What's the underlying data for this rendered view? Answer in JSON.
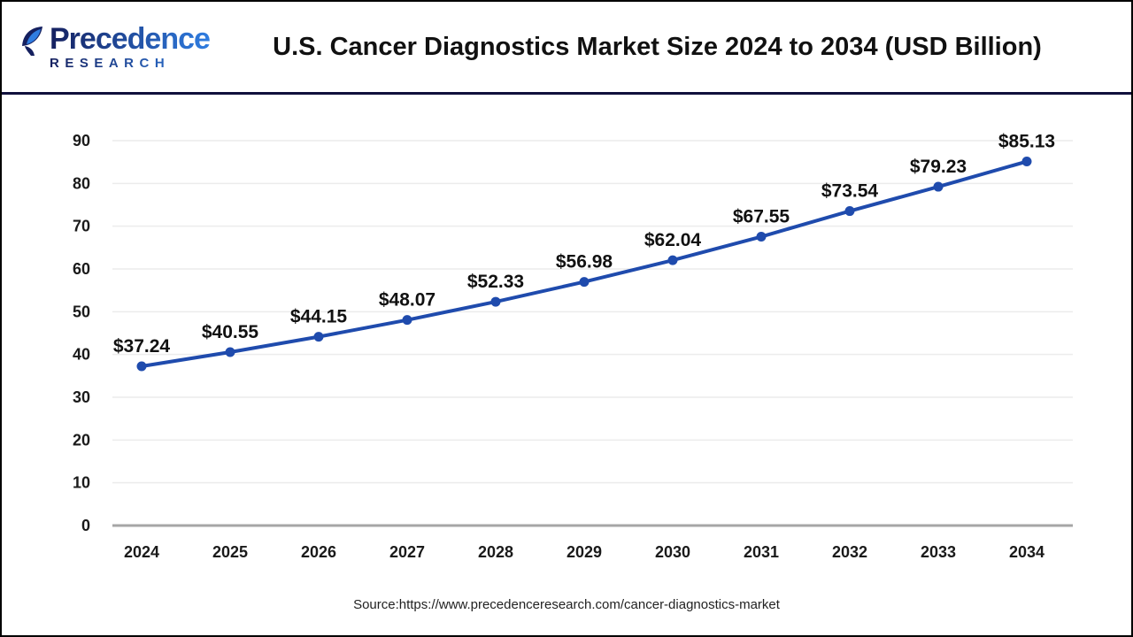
{
  "header": {
    "logo_line1": "Precedence",
    "logo_line2": "RESEARCH",
    "title": "U.S. Cancer Diagnostics Market Size 2024 to 2034 (USD Billion)"
  },
  "chart_data": {
    "type": "line",
    "title": "U.S. Cancer Diagnostics Market Size 2024 to 2034 (USD Billion)",
    "categories": [
      "2024",
      "2025",
      "2026",
      "2027",
      "2028",
      "2029",
      "2030",
      "2031",
      "2032",
      "2033",
      "2034"
    ],
    "values": [
      37.24,
      40.55,
      44.15,
      48.07,
      52.33,
      56.98,
      62.04,
      67.55,
      73.54,
      79.23,
      85.13
    ],
    "value_prefix": "$",
    "xlabel": "",
    "ylabel": "",
    "ylim": [
      0,
      90
    ],
    "ytick_step": 10,
    "grid": true,
    "legend": false,
    "line_color": "#1f4bad",
    "marker": "circle"
  },
  "footer": {
    "source": "Source:https://www.precedenceresearch.com/cancer-diagnostics-market"
  },
  "colors": {
    "line_blue": "#1f4bad",
    "divider_navy": "#10103c",
    "gridline": "#ececec",
    "axis_line": "#a6a6a6",
    "tick_text": "#1a1a1a",
    "logo_dark": "#15205f",
    "logo_light": "#2f7de1"
  }
}
